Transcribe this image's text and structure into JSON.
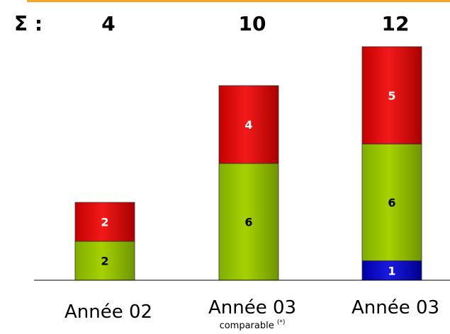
{
  "chart_data": {
    "type": "bar",
    "stacked": true,
    "sum_symbol": "Σ :",
    "categories": [
      {
        "label": "Année 02",
        "sublabel": "",
        "sublabel_sup": ""
      },
      {
        "label": "Année 03",
        "sublabel": "comparable",
        "sublabel_sup": "(*)"
      },
      {
        "label": "Année 03",
        "sublabel": "",
        "sublabel_sup": ""
      }
    ],
    "totals": [
      4,
      10,
      12
    ],
    "series": [
      {
        "values": [
          0,
          0,
          1
        ],
        "color": "#1414cc"
      },
      {
        "values": [
          2,
          6,
          6
        ],
        "color": "#99cc00"
      },
      {
        "values": [
          2,
          4,
          5
        ],
        "color": "#ee1111"
      }
    ],
    "ylim": [
      0,
      12
    ]
  },
  "colors": {
    "accent_rule": "#f5a623",
    "axis": "#000000"
  }
}
